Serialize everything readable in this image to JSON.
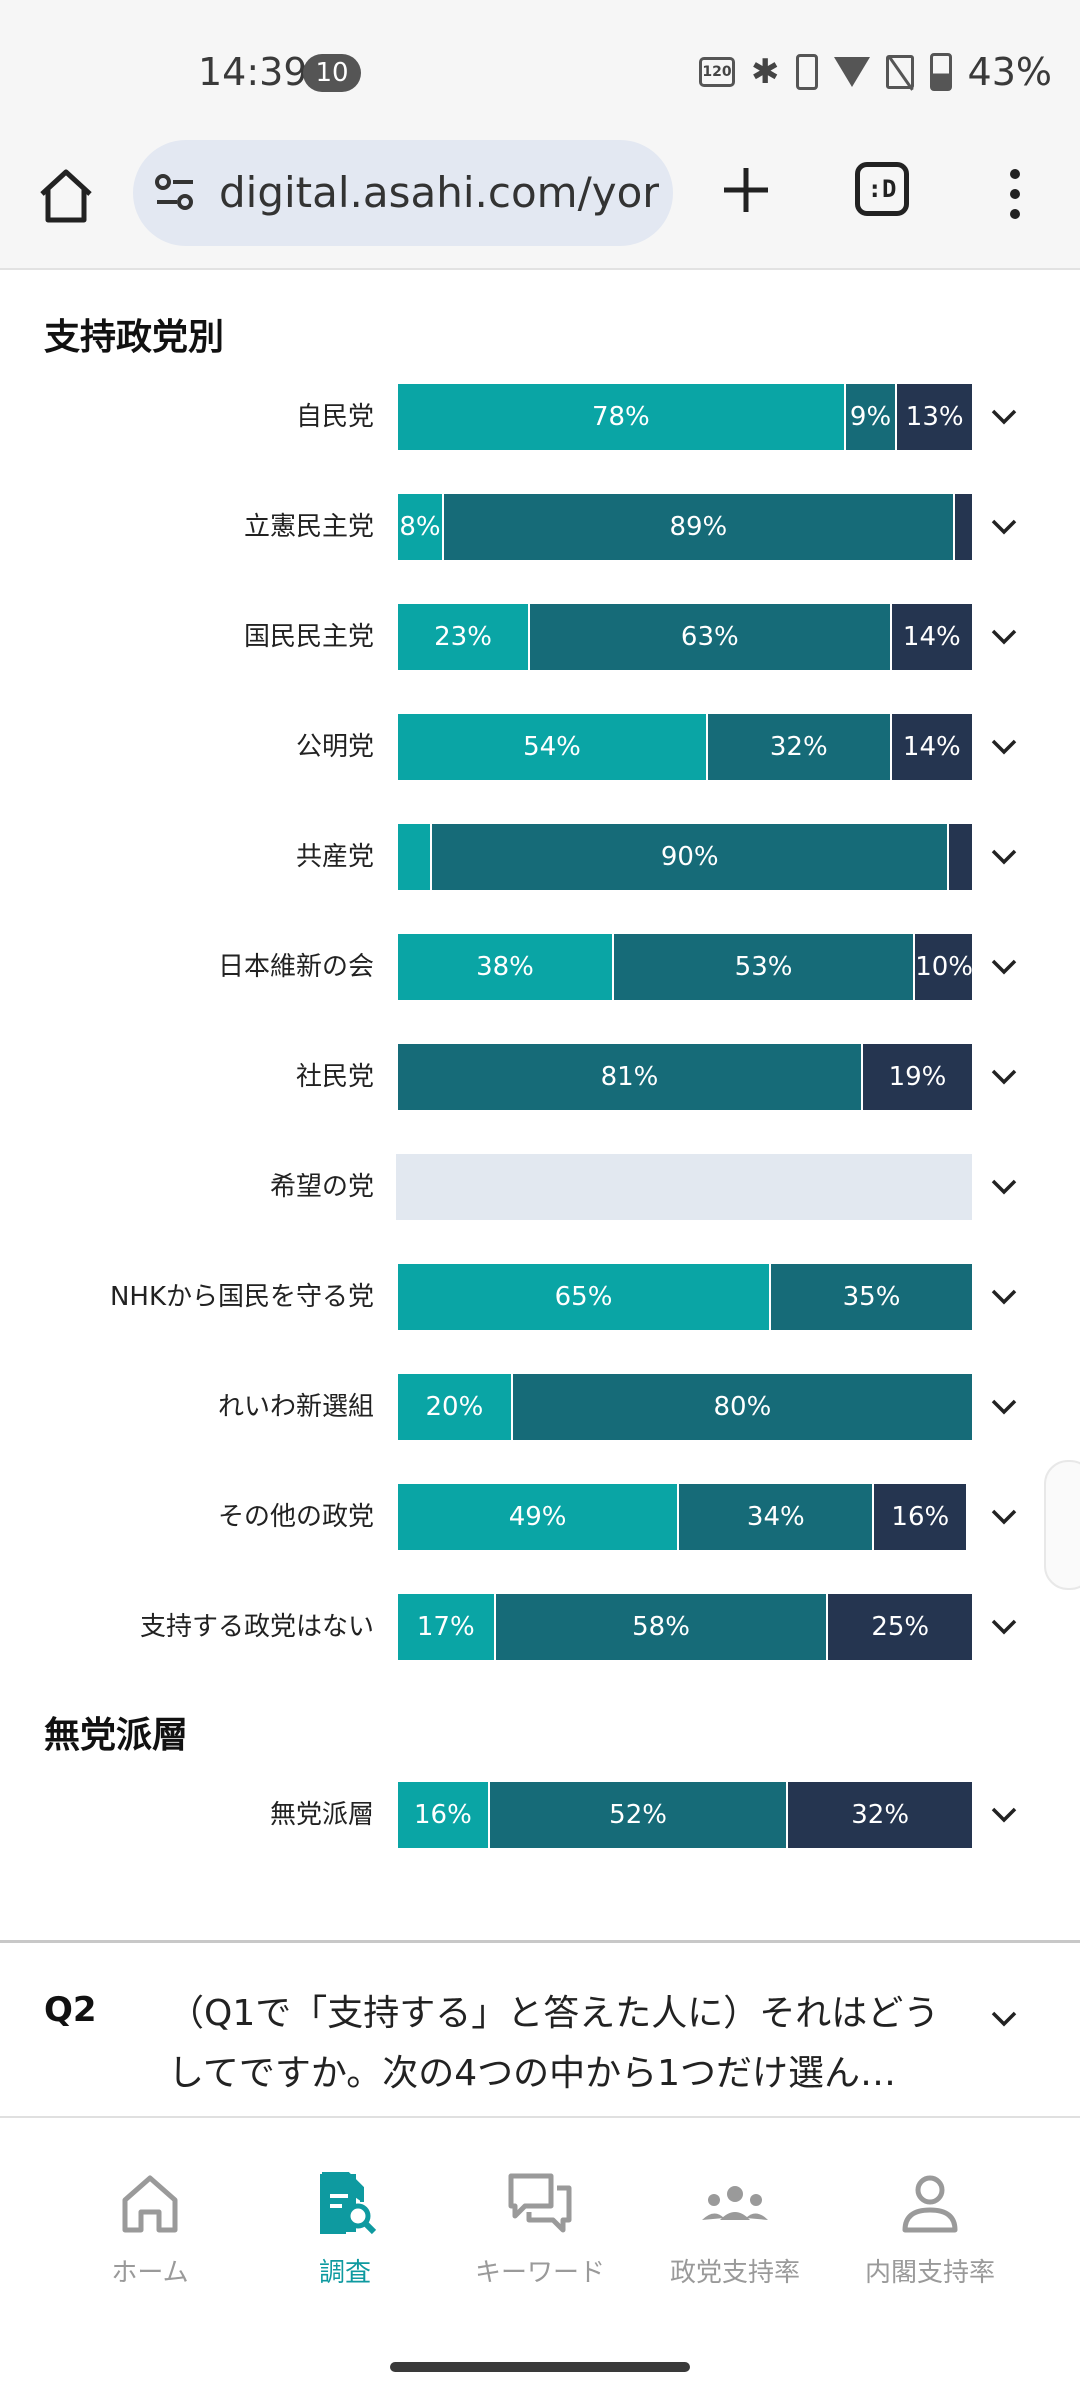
{
  "status_bar": {
    "time": "14:39",
    "notification_count": "10",
    "battery": "43%",
    "icons": [
      "120hz-icon",
      "bluetooth-icon",
      "vibrate-icon",
      "wifi-icon",
      "no-sim-icon",
      "battery-icon"
    ]
  },
  "browser": {
    "url": "digital.asahi.com/yoro",
    "tab_switcher_label": ":D"
  },
  "colors": {
    "support": "#0aa5a5",
    "not_support": "#166b78",
    "other": "#253550",
    "accent": "#0e9aa0"
  },
  "sections": [
    {
      "title": "支持政党別"
    },
    {
      "title": "無党派層"
    }
  ],
  "rows_party": [
    {
      "label": "自民党",
      "segments": [
        {
          "pct": 78,
          "text": "78%"
        },
        {
          "pct": 9,
          "text": "9%"
        },
        {
          "pct": 13,
          "text": "13%"
        }
      ]
    },
    {
      "label": "立憲民主党",
      "segments": [
        {
          "pct": 8,
          "text": "8%"
        },
        {
          "pct": 89,
          "text": "89%"
        },
        {
          "pct": 3,
          "text": ""
        }
      ]
    },
    {
      "label": "国民民主党",
      "segments": [
        {
          "pct": 23,
          "text": "23%"
        },
        {
          "pct": 63,
          "text": "63%"
        },
        {
          "pct": 14,
          "text": "14%"
        }
      ]
    },
    {
      "label": "公明党",
      "segments": [
        {
          "pct": 54,
          "text": "54%"
        },
        {
          "pct": 32,
          "text": "32%"
        },
        {
          "pct": 14,
          "text": "14%"
        }
      ]
    },
    {
      "label": "共産党",
      "segments": [
        {
          "pct": 6,
          "text": ""
        },
        {
          "pct": 90,
          "text": "90%"
        },
        {
          "pct": 4,
          "text": ""
        }
      ]
    },
    {
      "label": "日本維新の会",
      "segments": [
        {
          "pct": 38,
          "text": "38%"
        },
        {
          "pct": 53,
          "text": "53%"
        },
        {
          "pct": 10,
          "text": "10%"
        }
      ]
    },
    {
      "label": "社民党",
      "segments": [
        {
          "pct": 0,
          "text": ""
        },
        {
          "pct": 81,
          "text": "81%"
        },
        {
          "pct": 19,
          "text": "19%"
        }
      ]
    },
    {
      "label": "希望の党",
      "segments": []
    },
    {
      "label": "NHKから国民を守る党",
      "segments": [
        {
          "pct": 65,
          "text": "65%"
        },
        {
          "pct": 35,
          "text": "35%"
        },
        {
          "pct": 0,
          "text": ""
        }
      ]
    },
    {
      "label": "れいわ新選組",
      "segments": [
        {
          "pct": 20,
          "text": "20%"
        },
        {
          "pct": 80,
          "text": "80%"
        },
        {
          "pct": 0,
          "text": ""
        }
      ]
    },
    {
      "label": "その他の政党",
      "segments": [
        {
          "pct": 49,
          "text": "49%"
        },
        {
          "pct": 34,
          "text": "34%"
        },
        {
          "pct": 16,
          "text": "16%"
        }
      ]
    },
    {
      "label": "支持する政党はない",
      "segments": [
        {
          "pct": 17,
          "text": "17%"
        },
        {
          "pct": 58,
          "text": "58%"
        },
        {
          "pct": 25,
          "text": "25%"
        }
      ]
    }
  ],
  "rows_independent": [
    {
      "label": "無党派層",
      "segments": [
        {
          "pct": 16,
          "text": "16%"
        },
        {
          "pct": 52,
          "text": "52%"
        },
        {
          "pct": 32,
          "text": "32%"
        }
      ]
    }
  ],
  "question": {
    "tag": "Q2",
    "text": "（Q1で「支持する」と答えた人に）それはどうしてですか。次の4つの中から1つだけ選ん…"
  },
  "bottom_nav": [
    {
      "label": "ホーム",
      "icon": "home-icon",
      "active": false
    },
    {
      "label": "調査",
      "icon": "survey-search-icon",
      "active": true
    },
    {
      "label": "キーワード",
      "icon": "chat-bubbles-icon",
      "active": false
    },
    {
      "label": "政党支持率",
      "icon": "group-icon",
      "active": false
    },
    {
      "label": "内閣支持率",
      "icon": "person-icon",
      "active": false
    }
  ]
}
